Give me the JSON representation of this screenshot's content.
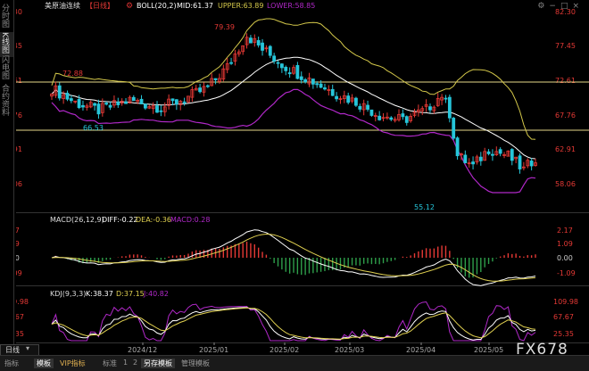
{
  "sidebar": {
    "items": [
      {
        "label": "分时图"
      },
      {
        "label": "K线图"
      },
      {
        "label": "闪电图"
      },
      {
        "label": "合约资料"
      }
    ]
  },
  "header": {
    "title": "美原油连续",
    "period": "【日线】",
    "boll_text": "BOLL(20,2)",
    "mid_text": "MID:61.37",
    "upper_text": "UPPER:63.89",
    "lower_text": "LOWER:58.85"
  },
  "toolbar_icons": [
    "gear-icon",
    "minus-icon",
    "maximize-icon",
    "close-icon"
  ],
  "toolbar_glyphs": [
    "⚙",
    "−",
    "□",
    "×"
  ],
  "price_axis": [
    "82.30",
    "77.45",
    "72.61",
    "67.76",
    "62.91",
    "58.06"
  ],
  "hline_labels": [
    "72.88",
    "66.53"
  ],
  "low_label": "55.12",
  "high_label": "79.39",
  "macd": {
    "header": "MACD(26,12,9)",
    "diff": "DIFF:-0.22",
    "dea": "DEA:-0.36",
    "macd": "MACD:0.28",
    "axis": [
      "2.17",
      "1.09",
      "0.00",
      "-1.09"
    ]
  },
  "kdj": {
    "header": "KDJ(9,3,3)",
    "k": "K:38.37",
    "d": "D:37.15",
    "j": "J:40.82",
    "axis": [
      "109.98",
      "67.67",
      "25.35"
    ]
  },
  "date_axis": [
    "2024/12",
    "2025/01",
    "2025/02",
    "2025/03",
    "2025/04",
    "2025/05"
  ],
  "period_badge": "日线",
  "bottom_tabs": [
    "指标",
    "模板",
    "VIP指标",
    "标准",
    "1",
    "2",
    "另存模板",
    "管理模板"
  ],
  "watermark": "FX678",
  "colors": {
    "up": "#e53935",
    "down": "#26c6da",
    "mid_line": "#ffffff",
    "upper": "#d4c84a",
    "lower": "#b028c8",
    "dea": "#e0d050",
    "hline": "#e6d98a"
  }
}
